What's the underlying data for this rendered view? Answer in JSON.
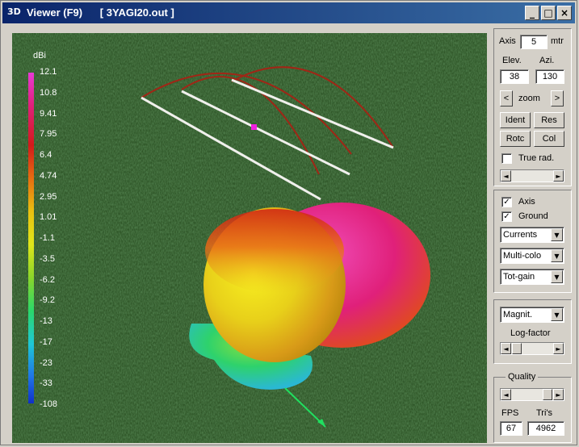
{
  "window": {
    "title": "Viewer (F9)      [ 3YAGI20.out ]",
    "icon_text": "3D",
    "minimize": "_",
    "maximize": "□",
    "close": "×"
  },
  "scale": {
    "unit": "dBi",
    "labels": [
      "12.1",
      "10.8",
      "9.41",
      "7.95",
      "6.4",
      "4.74",
      "2.95",
      "1.01",
      "-1.1",
      "-3.5",
      "-6.2",
      "-9.2",
      "-13",
      "-17",
      "-23",
      "-33",
      "-108"
    ]
  },
  "controls": {
    "axis_label": "Axis",
    "axis_value": "5",
    "axis_unit": "mtr",
    "elev_label": "Elev.",
    "azi_label": "Azi.",
    "elev_value": "38",
    "azi_value": "130",
    "zoom_label": "zoom",
    "zoom_prev": "<",
    "zoom_next": ">",
    "ident_label": "Ident",
    "res_label": "Res",
    "rotc_label": "Rotc",
    "col_label": "Col",
    "true_rad_label": "True rad.",
    "true_rad_checked": false,
    "axis_check_label": "Axis",
    "axis_checked": true,
    "ground_label": "Ground",
    "ground_checked": true,
    "check_mark": "✓",
    "dropdown_currents": "Currents",
    "dropdown_color": "Multi-colo",
    "dropdown_gain": "Tot-gain",
    "dropdown_magnit": "Magnit.",
    "log_factor_label": "Log-factor",
    "quality_label": "Quality",
    "fps_label": "FPS",
    "tris_label": "Tri's",
    "fps_value": "67",
    "tris_value": "4962",
    "arrow_left": "◄",
    "arrow_right": "►",
    "arrow_down": "▼"
  }
}
